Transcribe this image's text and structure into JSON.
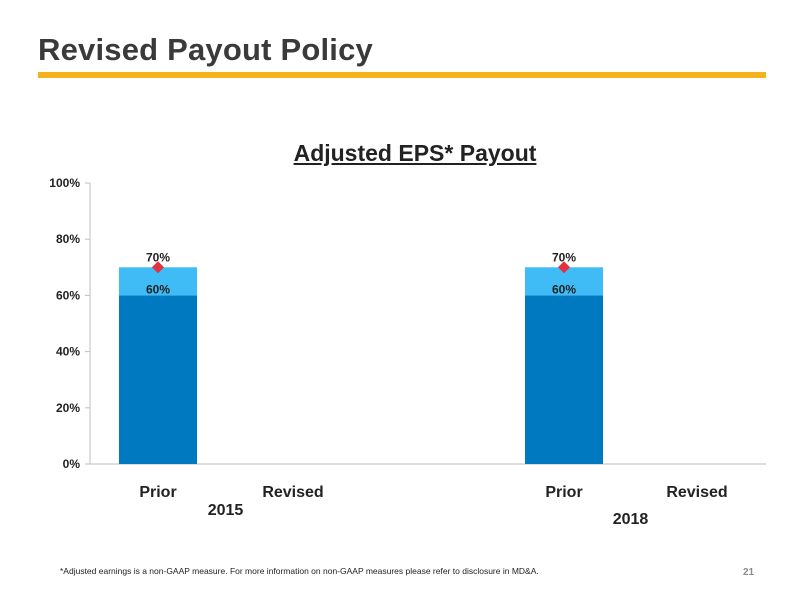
{
  "slide": {
    "title": "Revised Payout Policy",
    "footnote": "*Adjusted earnings is a non-GAAP measure. For more information on non-GAAP measures please refer to disclosure in MD&A.",
    "page_number": "21",
    "accent_color": "#f5b21b"
  },
  "chart_data": {
    "type": "bar",
    "title": "Adjusted EPS* Payout",
    "groups": [
      {
        "label": "2015",
        "categories": [
          "Prior",
          "Revised"
        ]
      },
      {
        "label": "2018",
        "categories": [
          "Prior",
          "Revised"
        ]
      }
    ],
    "series": [
      {
        "values": [
          60,
          null,
          60,
          null
        ],
        "color": "#0079c0",
        "labels": [
          "60%",
          "",
          "60%",
          ""
        ]
      },
      {
        "values": [
          10,
          null,
          10,
          null
        ],
        "color": "#3fbcf5",
        "labels": [
          "70%",
          "",
          "70%",
          ""
        ]
      }
    ],
    "markers": {
      "shape": "diamond",
      "color": "#e2313f",
      "values": [
        70,
        null,
        70,
        null
      ]
    },
    "ylim": [
      0,
      100
    ],
    "yticks": [
      "0%",
      "20%",
      "40%",
      "60%",
      "80%",
      "100%"
    ],
    "ytick_values": [
      0,
      20,
      40,
      60,
      80,
      100
    ],
    "grid": false
  }
}
